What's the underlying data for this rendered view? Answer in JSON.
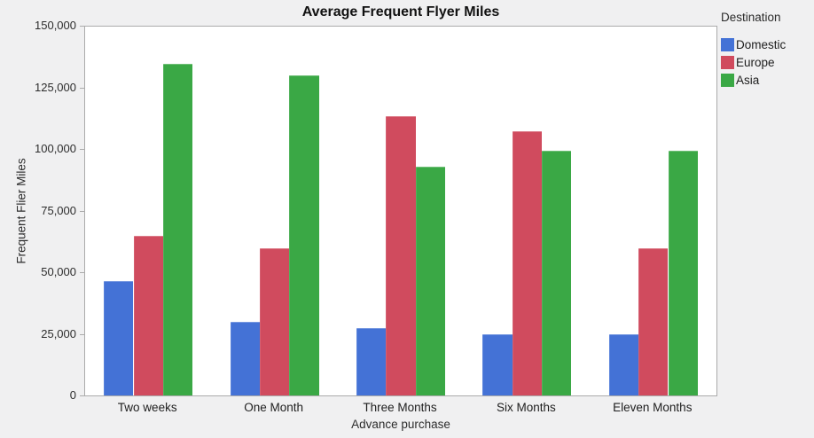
{
  "figure": {
    "background_color": "#f0f0f1",
    "plot_background_color": "#ffffff",
    "axis_color": "#ababab"
  },
  "chart_data": {
    "type": "bar",
    "title": "Average Frequent Flyer Miles",
    "xlabel": "Advance purchase",
    "ylabel": "Frequent Flier Miles",
    "categories": [
      "Two weeks",
      "One Month",
      "Three Months",
      "Six Months",
      "Eleven Months"
    ],
    "series": [
      {
        "name": "Domestic",
        "color": "#4472d6",
        "values": [
          46500,
          30000,
          27500,
          25000,
          25000
        ]
      },
      {
        "name": "Europe",
        "color": "#d04b5e",
        "values": [
          65000,
          60000,
          113500,
          107500,
          60000
        ]
      },
      {
        "name": "Asia",
        "color": "#3aa845",
        "values": [
          135000,
          130000,
          93000,
          99500,
          99500
        ]
      }
    ],
    "ylim": [
      0,
      150000
    ],
    "yticks": [
      0,
      25000,
      50000,
      75000,
      100000,
      125000,
      150000
    ],
    "ytick_labels": [
      "0",
      "25,000",
      "50,000",
      "75,000",
      "100,000",
      "125,000",
      "150,000"
    ],
    "grid": false,
    "legend_title": "Destination",
    "legend_position": "right"
  }
}
